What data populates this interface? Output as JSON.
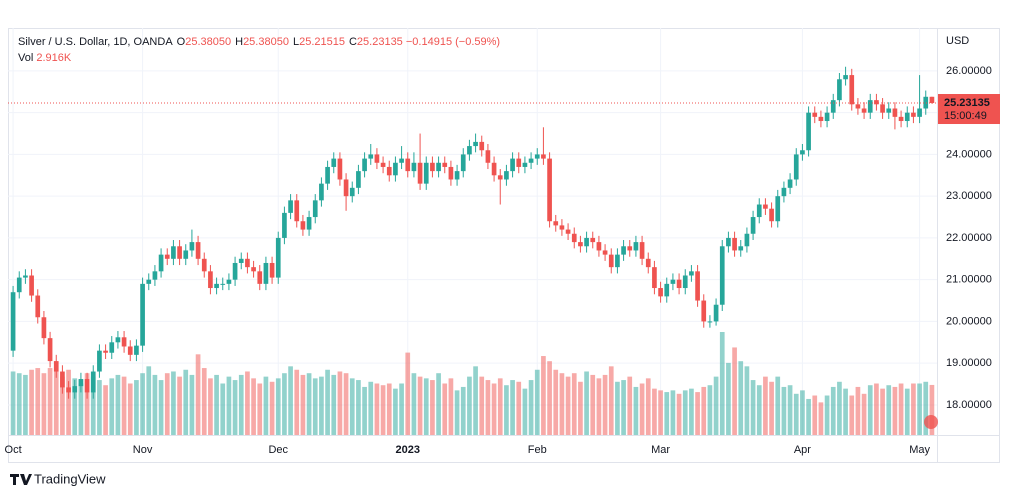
{
  "chart_data": {
    "type": "candlestick",
    "title": "Silver / U.S. Dollar, 1D, OANDA",
    "legend": [
      {
        "key": "O",
        "text": "25.38050"
      },
      {
        "key": "H",
        "text": "25.38050"
      },
      {
        "key": "L",
        "text": "25.21515"
      },
      {
        "key": "C",
        "text": "25.23135"
      }
    ],
    "change_label": "−0.14915 (−0.59%)",
    "volume_title": "Vol",
    "volume_label": "2.916K",
    "currency": "USD",
    "last_price_label": "25.23135",
    "countdown": "15:00:49",
    "brand": "TradingView",
    "up_color": "#26a69a",
    "down_color": "#ef5350",
    "grid": true,
    "categories": [
      "Oct",
      null,
      null,
      null,
      null,
      null,
      null,
      null,
      null,
      null,
      null,
      null,
      null,
      null,
      null,
      null,
      null,
      null,
      null,
      null,
      null,
      "Nov",
      null,
      null,
      null,
      null,
      null,
      null,
      null,
      null,
      null,
      null,
      null,
      null,
      null,
      null,
      null,
      null,
      null,
      null,
      null,
      null,
      null,
      "Dec",
      null,
      null,
      null,
      null,
      null,
      null,
      null,
      null,
      null,
      null,
      null,
      null,
      null,
      null,
      null,
      null,
      null,
      null,
      null,
      null,
      "2023",
      null,
      null,
      null,
      null,
      null,
      null,
      null,
      null,
      null,
      null,
      null,
      null,
      null,
      null,
      null,
      null,
      null,
      null,
      null,
      null,
      "Feb",
      null,
      null,
      null,
      null,
      null,
      null,
      null,
      null,
      null,
      null,
      null,
      null,
      null,
      null,
      null,
      null,
      null,
      null,
      null,
      "Mar",
      null,
      null,
      null,
      null,
      null,
      null,
      null,
      null,
      null,
      null,
      null,
      null,
      null,
      null,
      null,
      null,
      null,
      null,
      null,
      null,
      null,
      null,
      "Apr",
      null,
      null,
      null,
      null,
      null,
      null,
      null,
      null,
      null,
      null,
      null,
      null,
      null,
      null,
      null,
      null,
      null,
      null,
      "May",
      null,
      null
    ],
    "open": [
      19.3,
      20.7,
      21.05,
      21.1,
      20.62,
      20.1,
      19.6,
      19.05,
      18.8,
      18.42,
      18.3,
      18.45,
      18.62,
      18.3,
      18.8,
      19.3,
      19.25,
      19.5,
      19.62,
      19.4,
      19.2,
      19.42,
      20.9,
      21.0,
      21.2,
      21.6,
      21.5,
      21.8,
      21.5,
      21.7,
      21.9,
      21.5,
      21.2,
      20.8,
      20.9,
      20.9,
      21.0,
      21.4,
      21.5,
      21.3,
      21.2,
      20.9,
      21.4,
      21.05,
      22.0,
      22.6,
      22.9,
      22.4,
      22.2,
      22.5,
      22.9,
      23.3,
      23.7,
      23.9,
      23.4,
      23.0,
      23.2,
      23.6,
      23.9,
      24.0,
      23.8,
      23.7,
      23.5,
      23.8,
      23.9,
      23.6,
      23.8,
      23.3,
      23.8,
      23.6,
      23.8,
      23.7,
      23.4,
      23.6,
      24.0,
      24.2,
      24.3,
      24.1,
      23.8,
      23.5,
      23.4,
      23.6,
      23.9,
      23.7,
      23.8,
      23.9,
      24.0,
      23.9,
      22.4,
      22.3,
      22.2,
      22.1,
      21.9,
      21.8,
      22.0,
      21.9,
      21.7,
      21.6,
      21.3,
      21.6,
      21.8,
      21.7,
      21.9,
      21.5,
      21.3,
      20.8,
      20.6,
      20.9,
      21.0,
      20.8,
      21.1,
      21.2,
      20.5,
      20.0,
      20.0,
      20.4,
      21.8,
      22.0,
      21.7,
      21.8,
      22.1,
      22.5,
      22.8,
      22.7,
      22.4,
      23.0,
      23.2,
      23.4,
      24.0,
      24.1,
      25.0,
      24.9,
      24.8,
      25.0,
      25.3,
      25.8,
      25.9,
      25.2,
      25.1,
      25.0,
      25.3,
      25.2,
      25.0,
      25.1,
      24.9,
      24.8,
      25.0,
      24.9,
      25.1,
      25.3805
    ],
    "high": [
      20.85,
      21.2,
      21.25,
      21.25,
      20.77,
      20.25,
      19.75,
      19.2,
      18.95,
      18.57,
      18.6,
      18.77,
      18.77,
      18.95,
      19.45,
      19.45,
      19.65,
      19.77,
      19.77,
      19.55,
      19.57,
      21.05,
      21.15,
      21.35,
      21.75,
      21.75,
      21.95,
      21.95,
      21.85,
      22.2,
      22.05,
      21.65,
      21.35,
      21.05,
      21.05,
      21.15,
      21.55,
      21.65,
      21.65,
      21.45,
      21.35,
      21.55,
      21.55,
      22.15,
      22.75,
      23.05,
      23.05,
      22.55,
      22.65,
      23.05,
      23.45,
      23.85,
      24.05,
      24.05,
      23.55,
      23.35,
      23.75,
      24.05,
      24.25,
      24.15,
      23.95,
      23.85,
      23.95,
      24.2,
      24.05,
      24.05,
      24.5,
      23.95,
      23.95,
      23.95,
      23.95,
      23.85,
      23.75,
      24.15,
      24.35,
      24.5,
      24.45,
      24.25,
      23.95,
      23.65,
      23.75,
      24.05,
      24.05,
      23.95,
      24.05,
      24.15,
      24.65,
      24.05,
      22.55,
      22.45,
      22.35,
      22.25,
      22.05,
      22.15,
      22.15,
      22.05,
      21.85,
      21.75,
      21.75,
      21.95,
      21.95,
      22.05,
      22.05,
      21.65,
      21.45,
      20.95,
      21.05,
      21.15,
      21.15,
      21.25,
      21.35,
      21.35,
      20.65,
      20.15,
      20.55,
      21.95,
      22.15,
      22.15,
      21.95,
      22.25,
      22.65,
      22.95,
      22.95,
      22.85,
      23.15,
      23.35,
      23.55,
      24.15,
      24.25,
      25.15,
      25.15,
      25.05,
      25.15,
      25.45,
      25.95,
      26.1,
      26.05,
      25.35,
      25.25,
      25.45,
      25.45,
      25.35,
      25.25,
      25.25,
      25.05,
      25.15,
      25.15,
      25.9,
      25.53,
      25.3805
    ],
    "low": [
      19.15,
      20.55,
      20.9,
      20.47,
      19.95,
      19.45,
      18.9,
      18.65,
      18.27,
      18.15,
      18.15,
      18.3,
      18.15,
      18.15,
      18.65,
      19.1,
      19.1,
      19.35,
      19.25,
      19.05,
      19.05,
      19.27,
      20.75,
      20.85,
      21.05,
      21.35,
      21.35,
      21.35,
      21.35,
      21.55,
      21.35,
      21.05,
      20.65,
      20.65,
      20.75,
      20.75,
      20.85,
      21.25,
      21.15,
      21.05,
      20.75,
      20.75,
      20.9,
      20.9,
      21.85,
      22.45,
      22.25,
      22.05,
      22.05,
      22.35,
      22.75,
      23.15,
      23.55,
      23.25,
      22.65,
      22.85,
      23.05,
      23.45,
      23.75,
      23.65,
      23.55,
      23.35,
      23.35,
      23.65,
      23.45,
      23.45,
      23.15,
      23.15,
      23.45,
      23.45,
      23.55,
      23.25,
      23.25,
      23.45,
      23.85,
      24.05,
      23.95,
      23.65,
      23.35,
      22.8,
      23.25,
      23.45,
      23.55,
      23.55,
      23.65,
      23.75,
      23.75,
      22.25,
      22.15,
      22.05,
      21.95,
      21.75,
      21.65,
      21.65,
      21.75,
      21.55,
      21.45,
      21.15,
      21.15,
      21.45,
      21.55,
      21.55,
      21.35,
      21.15,
      20.65,
      20.45,
      20.45,
      20.75,
      20.65,
      20.65,
      20.95,
      20.35,
      19.85,
      19.85,
      19.9,
      20.25,
      21.65,
      21.55,
      21.55,
      21.65,
      21.95,
      22.35,
      22.55,
      22.25,
      22.25,
      22.85,
      23.05,
      23.25,
      23.85,
      23.95,
      24.75,
      24.65,
      24.65,
      24.85,
      25.15,
      25.65,
      25.05,
      24.95,
      24.85,
      24.85,
      25.05,
      24.85,
      24.85,
      24.6,
      24.65,
      24.65,
      24.75,
      24.75,
      24.95,
      25.21515
    ],
    "close": [
      20.7,
      21.05,
      21.1,
      20.62,
      20.1,
      19.6,
      19.05,
      18.8,
      18.42,
      18.3,
      18.45,
      18.62,
      18.3,
      18.8,
      19.3,
      19.25,
      19.5,
      19.62,
      19.4,
      19.2,
      19.42,
      20.9,
      21.0,
      21.2,
      21.6,
      21.5,
      21.8,
      21.5,
      21.7,
      21.9,
      21.5,
      21.2,
      20.8,
      20.9,
      20.9,
      21.0,
      21.4,
      21.5,
      21.3,
      21.2,
      20.9,
      21.4,
      21.05,
      22.0,
      22.6,
      22.9,
      22.4,
      22.2,
      22.5,
      22.9,
      23.3,
      23.7,
      23.9,
      23.4,
      23.0,
      23.2,
      23.6,
      23.9,
      24.0,
      23.8,
      23.7,
      23.5,
      23.8,
      23.9,
      23.6,
      23.8,
      23.3,
      23.8,
      23.6,
      23.8,
      23.7,
      23.4,
      23.6,
      24.0,
      24.2,
      24.3,
      24.1,
      23.8,
      23.5,
      23.4,
      23.6,
      23.9,
      23.7,
      23.8,
      23.9,
      24.0,
      23.9,
      22.4,
      22.3,
      22.2,
      22.1,
      21.9,
      21.8,
      22.0,
      21.9,
      21.7,
      21.6,
      21.3,
      21.6,
      21.8,
      21.7,
      21.9,
      21.5,
      21.3,
      20.8,
      20.6,
      20.9,
      21.0,
      20.8,
      21.1,
      21.2,
      20.5,
      20.0,
      20.0,
      20.4,
      21.8,
      22.0,
      21.7,
      21.8,
      22.1,
      22.5,
      22.8,
      22.7,
      22.4,
      23.0,
      23.2,
      23.4,
      24.0,
      24.1,
      25.0,
      24.9,
      24.8,
      25.0,
      25.3,
      25.8,
      25.9,
      25.2,
      25.1,
      25.0,
      25.3,
      25.2,
      25.0,
      25.1,
      24.9,
      24.8,
      25.0,
      24.9,
      25.1,
      25.3805,
      25.23135
    ],
    "volume": [
      3.7,
      3.6,
      3.5,
      3.8,
      3.9,
      3.6,
      3.9,
      3.7,
      3.4,
      3.8,
      3.3,
      3.0,
      3.6,
      3.4,
      3.2,
      2.9,
      3.3,
      3.5,
      3.4,
      3.0,
      3.2,
      3.6,
      4.0,
      3.5,
      3.2,
      3.6,
      3.7,
      3.4,
      3.8,
      3.5,
      4.7,
      3.9,
      3.3,
      3.5,
      3.0,
      3.4,
      3.2,
      3.5,
      3.7,
      3.3,
      3.0,
      3.4,
      3.1,
      3.3,
      3.6,
      4.0,
      3.8,
      3.5,
      3.6,
      3.3,
      3.4,
      3.8,
      3.5,
      3.7,
      3.6,
      3.3,
      3.2,
      2.8,
      3.1,
      3.0,
      2.9,
      3.0,
      2.7,
      3.0,
      4.8,
      3.6,
      3.4,
      3.3,
      3.2,
      3.6,
      3.0,
      3.3,
      2.6,
      2.8,
      3.4,
      4.0,
      3.4,
      3.2,
      3.0,
      3.3,
      2.9,
      3.2,
      3.1,
      2.7,
      3.2,
      3.8,
      4.6,
      4.3,
      3.8,
      3.6,
      3.4,
      3.6,
      3.1,
      3.7,
      3.5,
      3.3,
      3.5,
      4.0,
      3.1,
      3.2,
      3.4,
      2.8,
      3.0,
      3.3,
      2.7,
      2.6,
      2.5,
      2.6,
      2.4,
      2.6,
      2.7,
      2.5,
      2.8,
      2.9,
      3.4,
      6.0,
      4.2,
      5.1,
      4.3,
      4.0,
      3.2,
      2.9,
      3.4,
      3.1,
      3.4,
      2.8,
      2.9,
      2.4,
      2.6,
      2.1,
      2.3,
      1.9,
      2.3,
      2.8,
      3.1,
      2.7,
      2.3,
      2.8,
      2.4,
      2.9,
      3.0,
      2.7,
      2.9,
      2.8,
      3.0,
      2.7,
      3.0,
      3.0,
      3.1,
      2.916
    ],
    "ylim": [
      17.28,
      26.98
    ],
    "yticks": [
      {
        "value": 18,
        "label": "18.00000"
      },
      {
        "value": 19,
        "label": "19.00000"
      },
      {
        "value": 20,
        "label": "20.00000"
      },
      {
        "value": 21,
        "label": "21.00000"
      },
      {
        "value": 22,
        "label": "22.00000"
      },
      {
        "value": 23,
        "label": "23.00000"
      },
      {
        "value": 24,
        "label": "24.00000"
      },
      {
        "value": 25,
        "label": "25.00000"
      },
      {
        "value": 26,
        "label": "26.00000"
      }
    ]
  }
}
